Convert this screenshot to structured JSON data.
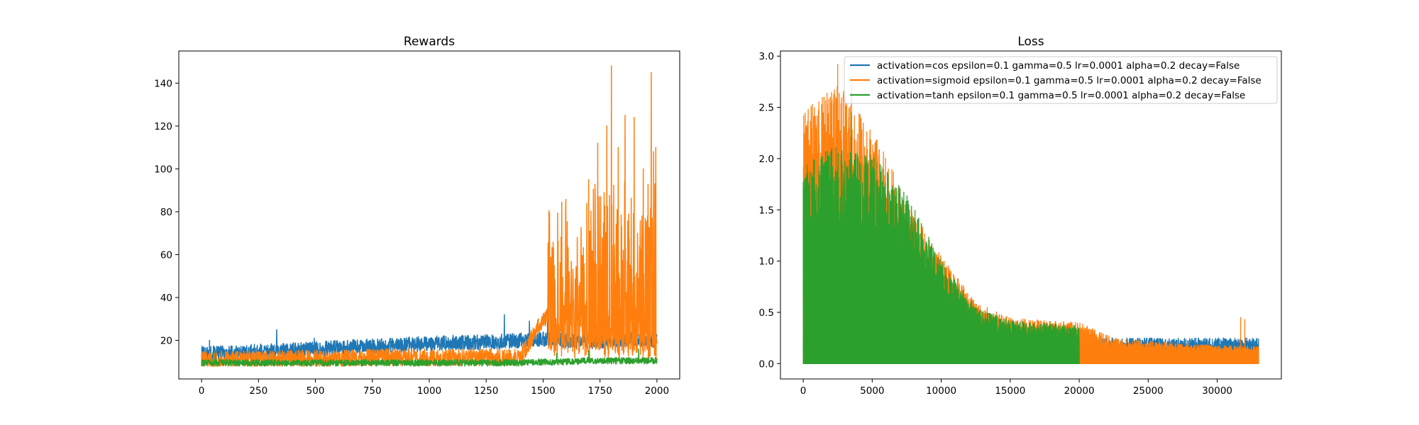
{
  "chart_data": [
    {
      "type": "line",
      "title": "Rewards",
      "xlabel": "",
      "ylabel": "",
      "xlim": [
        -100,
        2100
      ],
      "ylim": [
        2,
        155
      ],
      "xticks": [
        0,
        250,
        500,
        750,
        1000,
        1250,
        1500,
        1750,
        2000
      ],
      "yticks": [
        20,
        40,
        60,
        80,
        100,
        120,
        140
      ],
      "grid": false,
      "x_range": [
        0,
        2000
      ],
      "series": [
        {
          "color": "#1f77b4",
          "mean_by_segment": [
            14,
            14,
            14.5,
            15,
            15.5,
            16,
            16.5,
            17,
            17.5,
            18,
            18.5,
            19,
            19,
            19.5,
            20,
            20.5,
            20,
            19.5,
            20,
            20.5,
            20
          ],
          "noise": 3.5,
          "spikes": [
            [
              35,
              20
            ],
            [
              330,
              25
            ],
            [
              495,
              21
            ],
            [
              1330,
              32
            ],
            [
              1440,
              29
            ],
            [
              1520,
              30
            ],
            [
              1990,
              29
            ]
          ]
        },
        {
          "color": "#ff7f0e",
          "mean_by_segment": [
            11,
            11,
            11,
            11,
            11.5,
            11.5,
            11.5,
            12,
            12,
            12,
            12,
            12,
            12,
            12,
            12,
            30,
            35,
            40,
            42,
            38,
            40
          ],
          "noise": 4,
          "high_variance_start": 1520,
          "spikes": [
            [
              1525,
              55
            ],
            [
              1580,
              60
            ],
            [
              1610,
              63
            ],
            [
              1650,
              68
            ],
            [
              1700,
              95
            ],
            [
              1740,
              112
            ],
            [
              1780,
              120
            ],
            [
              1800,
              148
            ],
            [
              1830,
              110
            ],
            [
              1860,
              125
            ],
            [
              1900,
              124
            ],
            [
              1940,
              100
            ],
            [
              1975,
              145
            ],
            [
              1985,
              108
            ],
            [
              1995,
              110
            ]
          ]
        },
        {
          "color": "#2ca02c",
          "mean_by_segment": [
            9.5,
            9.5,
            9.5,
            9.5,
            9.5,
            9.5,
            9.5,
            9.5,
            9.5,
            9.5,
            9.5,
            9.5,
            9.5,
            9.5,
            9.5,
            10,
            10,
            10.5,
            10.5,
            10.5,
            10.5
          ],
          "noise": 1.5,
          "spikes": [
            [
              60,
              15
            ],
            [
              1560,
              14
            ],
            [
              1700,
              15
            ],
            [
              1920,
              16
            ]
          ]
        }
      ]
    },
    {
      "type": "line",
      "title": "Loss",
      "xlabel": "",
      "ylabel": "",
      "xlim": [
        -1650,
        34650
      ],
      "ylim": [
        -0.15,
        3.05
      ],
      "xticks": [
        0,
        5000,
        10000,
        15000,
        20000,
        25000,
        30000
      ],
      "yticks": [
        0.0,
        0.5,
        1.0,
        1.5,
        2.0,
        2.5,
        3.0
      ],
      "grid": false,
      "legend_location": "top-right",
      "series": [
        {
          "name": "activation=cos epsilon=0.1 gamma=0.5 lr=0.0001 alpha=0.2 decay=False",
          "color": "#1f77b4",
          "x_range": [
            0,
            33000
          ],
          "envelope_by_5000": [
            0.3,
            0.3,
            0.25,
            0.25,
            0.25,
            0.25,
            0.25,
            0.25
          ],
          "spikes": [
            [
              32500,
              0.22
            ]
          ]
        },
        {
          "name": "activation=sigmoid epsilon=0.1 gamma=0.5 lr=0.0001 alpha=0.2 decay=False",
          "color": "#ff7f0e",
          "x_range": [
            0,
            33000
          ],
          "envelope_by_2500": [
            2.5,
            2.75,
            2.3,
            1.6,
            1.05,
            0.6,
            0.45,
            0.42,
            0.4,
            0.25,
            0.22,
            0.2,
            0.18,
            0.17,
            0.15
          ],
          "spikes": [
            [
              2500,
              2.92
            ],
            [
              3500,
              2.72
            ],
            [
              5200,
              2.15
            ],
            [
              7200,
              1.52
            ],
            [
              10000,
              0.75
            ],
            [
              31700,
              0.45
            ],
            [
              32000,
              0.43
            ]
          ]
        },
        {
          "name": "activation=tanh epsilon=0.1 gamma=0.5 lr=0.0001 alpha=0.2 decay=False",
          "color": "#2ca02c",
          "x_range": [
            0,
            20000
          ],
          "envelope_by_2500": [
            1.95,
            2.15,
            2.05,
            1.65,
            1.0,
            0.55,
            0.42,
            0.4,
            0.37
          ],
          "spikes": [
            [
              3500,
              2.45
            ],
            [
              6800,
              1.4
            ],
            [
              9000,
              0.8
            ]
          ]
        }
      ]
    }
  ]
}
